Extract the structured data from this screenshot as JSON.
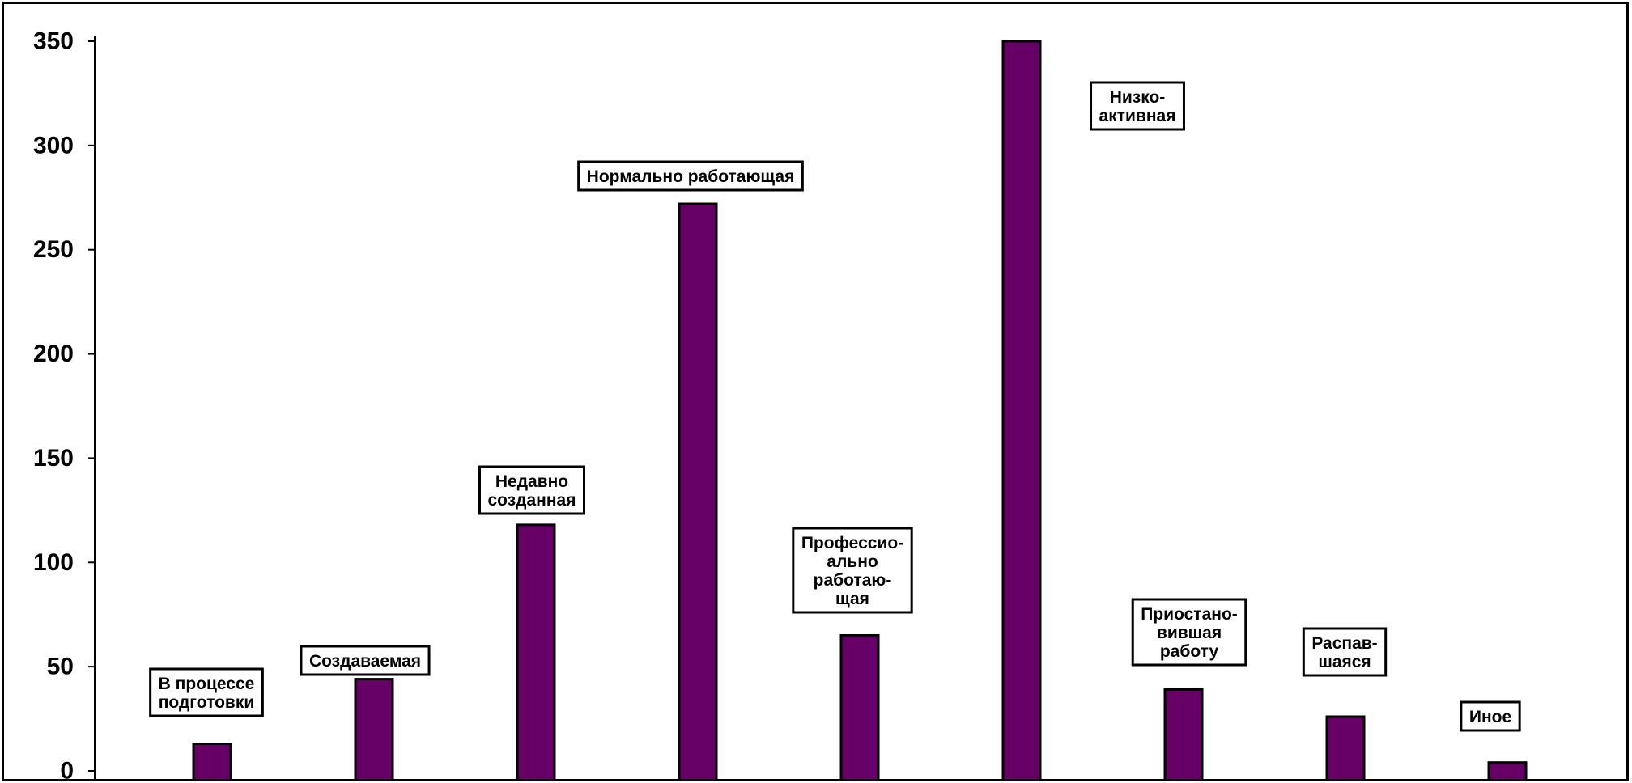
{
  "chart_data": {
    "type": "bar",
    "title": "",
    "xlabel": "",
    "ylabel": "",
    "ylim": [
      0,
      350
    ],
    "yticks": [
      0,
      50,
      100,
      150,
      200,
      250,
      300,
      350
    ],
    "grid": false,
    "legend": "none",
    "bar_color": "#660066",
    "categories": [
      "В процессе подготовки",
      "Создаваемая",
      "Недавно созданная",
      "Нормально работающая",
      "Профессио-ально работаю-щая",
      "Низко-активная",
      "Приостано-вившая работу",
      "Распав-шаяся",
      "Иное"
    ],
    "values": [
      13,
      44,
      118,
      272,
      65,
      350,
      39,
      26,
      4
    ],
    "data_labels": [
      [
        "В процессе",
        "подготовки"
      ],
      [
        "Создаваемая"
      ],
      [
        "Недавно",
        "созданная"
      ],
      [
        "Нормально  работающая"
      ],
      [
        "Профессио-",
        "ально",
        "работаю-",
        "щая"
      ],
      [
        "Низко-",
        "активная"
      ],
      [
        "Приостано-",
        "вившая",
        "работу"
      ],
      [
        "Распав-",
        "шаяся"
      ],
      [
        "Иное"
      ]
    ]
  }
}
